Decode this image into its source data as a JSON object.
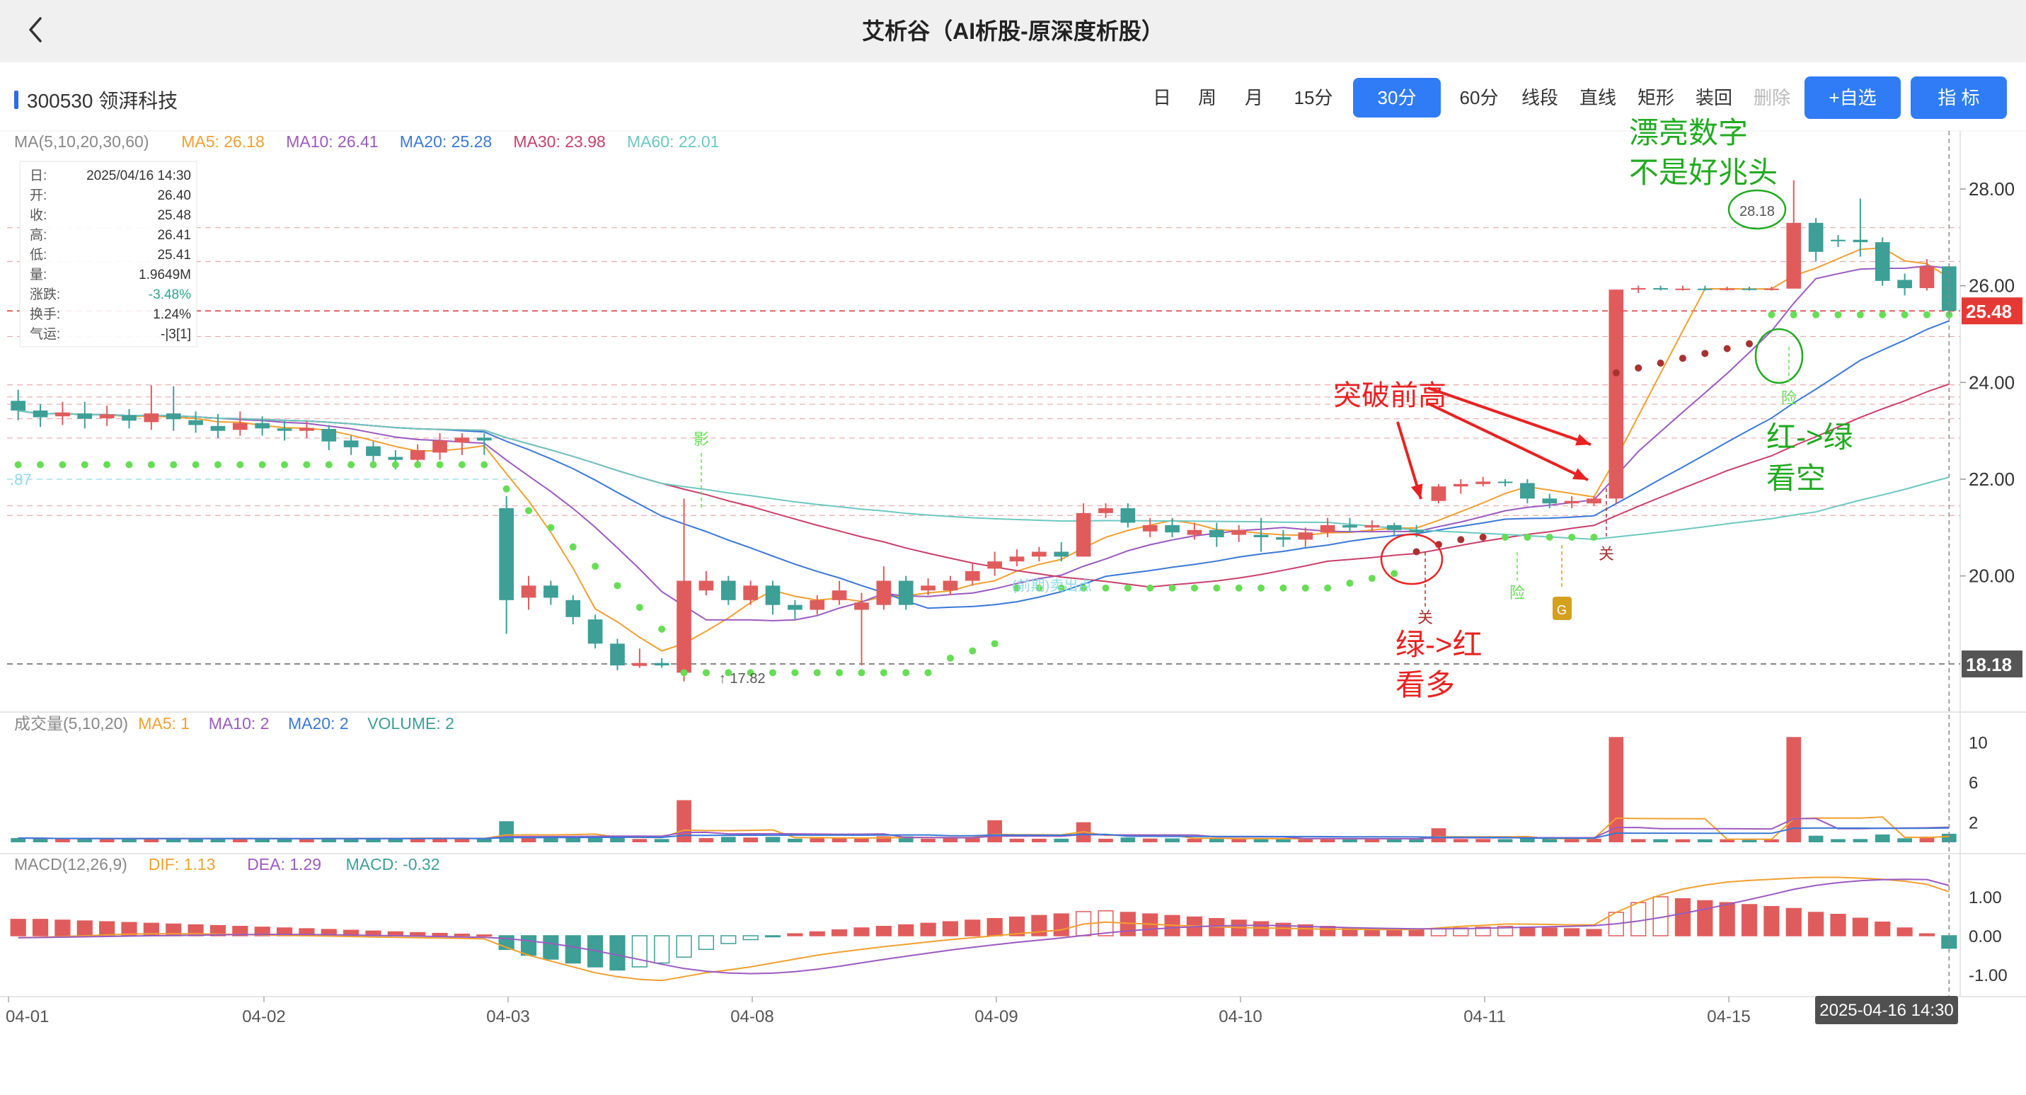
{
  "app": {
    "title": "艾析谷（AI析股-原深度析股）",
    "back_icon": "chevron-left-icon"
  },
  "stock": {
    "code_name": "300530 领湃科技"
  },
  "periods": [
    "日",
    "周",
    "月",
    "15分",
    "30分",
    "60分",
    "线段",
    "直线",
    "矩形",
    "装回",
    "删除"
  ],
  "active_period": "30分",
  "disabled_period": "删除",
  "buttons": {
    "watchlist": "+自选",
    "indicator": "指  标"
  },
  "colors": {
    "up": "#e05c5c",
    "down": "#3d9f96",
    "ma5": "#f0a030",
    "ma10": "#9a5bbf",
    "ma20": "#3a78d6",
    "ma30": "#c8406a",
    "ma60": "#6cc8c0",
    "accent": "#2f7cf6",
    "sar": "#66dd55",
    "annot_red": "#e82222",
    "annot_green": "#22aa22"
  },
  "ma_legend": [
    {
      "label": "MA(5,10,20,30,60)",
      "color": "#888888"
    },
    {
      "label": "MA5: 26.18",
      "color": "#f0a030"
    },
    {
      "label": "MA10: 26.41",
      "color": "#9a5bbf"
    },
    {
      "label": "MA20: 25.28",
      "color": "#3a78d6"
    },
    {
      "label": "MA30: 23.98",
      "color": "#c8406a"
    },
    {
      "label": "MA60: 22.01",
      "color": "#6cc8c0"
    }
  ],
  "info_box": [
    {
      "k": "日:",
      "v": "2025/04/16 14:30"
    },
    {
      "k": "开:",
      "v": "26.40"
    },
    {
      "k": "收:",
      "v": "25.48"
    },
    {
      "k": "高:",
      "v": "26.41"
    },
    {
      "k": "低:",
      "v": "25.41"
    },
    {
      "k": "量:",
      "v": "1.9649M"
    },
    {
      "k": "涨跌:",
      "v": "-3.48%"
    },
    {
      "k": "换手:",
      "v": "1.24%"
    },
    {
      "k": "气运:",
      "v": "-|3[1]"
    }
  ],
  "vol_legend": [
    {
      "label": "成交量(5,10,20)",
      "color": "#888888"
    },
    {
      "label": "MA5: 1",
      "color": "#f0a030"
    },
    {
      "label": "MA10: 2",
      "color": "#9a5bbf"
    },
    {
      "label": "MA20: 2",
      "color": "#3a78d6"
    },
    {
      "label": "VOLUME: 2",
      "color": "#3d9f96"
    }
  ],
  "macd_legend": [
    {
      "label": "MACD(12,26,9)",
      "color": "#888888"
    },
    {
      "label": "DIF: 1.13",
      "color": "#f0a030"
    },
    {
      "label": "DEA: 1.29",
      "color": "#9a5bbf"
    },
    {
      "label": "MACD: -0.32",
      "color": "#3d9f96"
    }
  ],
  "chart_data": {
    "type": "candlestick",
    "period": "30分",
    "x_labels": [
      "04-01",
      "04-02",
      "04-03",
      "04-08",
      "04-09",
      "04-10",
      "04-11",
      "04-15"
    ],
    "cursor_time": "2025-04-16 14:30",
    "price_axis": {
      "ticks": [
        "28.00",
        "26.00",
        "24.00",
        "22.00",
        "20.00"
      ],
      "range": [
        17.2,
        29.2
      ]
    },
    "current_price": "25.48",
    "low_line": "18.18",
    "high_mark": "28.18",
    "low_mark": "17.82",
    "left_level_label": ".87",
    "candles": [
      [
        23.62,
        23.42,
        23.85,
        23.22
      ],
      [
        23.42,
        23.28,
        23.55,
        23.08
      ],
      [
        23.3,
        23.38,
        23.6,
        23.12
      ],
      [
        23.36,
        23.25,
        23.6,
        23.05
      ],
      [
        23.26,
        23.34,
        23.52,
        23.1
      ],
      [
        23.32,
        23.21,
        23.45,
        23.05
      ],
      [
        23.18,
        23.36,
        23.94,
        23.02
      ],
      [
        23.36,
        23.24,
        23.92,
        23.0
      ],
      [
        23.22,
        23.12,
        23.4,
        22.96
      ],
      [
        23.1,
        23.0,
        23.35,
        22.85
      ],
      [
        23.02,
        23.16,
        23.4,
        22.9
      ],
      [
        23.16,
        23.05,
        23.3,
        22.9
      ],
      [
        23.05,
        23.0,
        23.2,
        22.8
      ],
      [
        23.0,
        23.06,
        23.2,
        22.85
      ],
      [
        23.04,
        22.78,
        23.12,
        22.6
      ],
      [
        22.8,
        22.66,
        22.9,
        22.5
      ],
      [
        22.68,
        22.48,
        22.78,
        22.3
      ],
      [
        22.46,
        22.4,
        22.6,
        22.2
      ],
      [
        22.4,
        22.6,
        22.72,
        22.3
      ],
      [
        22.55,
        22.8,
        22.95,
        22.4
      ],
      [
        22.76,
        22.86,
        22.95,
        22.5
      ],
      [
        22.86,
        22.8,
        22.95,
        22.5
      ],
      [
        21.4,
        19.5,
        21.65,
        18.8
      ],
      [
        19.55,
        19.8,
        20.0,
        19.3
      ],
      [
        19.8,
        19.55,
        19.9,
        19.4
      ],
      [
        19.5,
        19.15,
        19.6,
        19.0
      ],
      [
        19.1,
        18.6,
        19.2,
        18.5
      ],
      [
        18.6,
        18.15,
        18.7,
        18.05
      ],
      [
        18.14,
        18.2,
        18.5,
        18.1
      ],
      [
        18.2,
        18.15,
        18.3,
        18.1
      ],
      [
        18.0,
        19.9,
        21.6,
        17.82
      ],
      [
        19.7,
        19.9,
        20.1,
        19.6
      ],
      [
        19.9,
        19.5,
        20.0,
        19.4
      ],
      [
        19.5,
        19.8,
        19.9,
        19.4
      ],
      [
        19.8,
        19.4,
        19.9,
        19.2
      ],
      [
        19.4,
        19.3,
        19.5,
        19.1
      ],
      [
        19.3,
        19.5,
        19.6,
        19.2
      ],
      [
        19.5,
        19.7,
        19.9,
        19.4
      ],
      [
        19.3,
        19.45,
        19.65,
        18.15
      ],
      [
        19.4,
        19.9,
        20.2,
        19.3
      ],
      [
        19.9,
        19.4,
        20.0,
        19.3
      ],
      [
        19.7,
        19.8,
        19.95,
        19.6
      ],
      [
        19.7,
        19.9,
        20.0,
        19.6
      ],
      [
        19.9,
        20.1,
        20.25,
        19.8
      ],
      [
        20.15,
        20.3,
        20.5,
        20.0
      ],
      [
        20.3,
        20.4,
        20.55,
        20.2
      ],
      [
        20.4,
        20.5,
        20.6,
        20.3
      ],
      [
        20.5,
        20.4,
        20.7,
        20.3
      ],
      [
        20.4,
        21.3,
        21.5,
        20.4
      ],
      [
        21.3,
        21.4,
        21.5,
        21.2
      ],
      [
        21.4,
        21.1,
        21.5,
        21.0
      ],
      [
        20.92,
        21.05,
        21.2,
        20.8
      ],
      [
        21.05,
        20.9,
        21.2,
        20.8
      ],
      [
        20.85,
        20.95,
        21.1,
        20.75
      ],
      [
        20.95,
        20.8,
        21.1,
        20.6
      ],
      [
        20.85,
        20.95,
        21.05,
        20.7
      ],
      [
        20.85,
        20.8,
        21.2,
        20.5
      ],
      [
        20.8,
        20.75,
        20.95,
        20.6
      ],
      [
        20.75,
        20.9,
        21.0,
        20.6
      ],
      [
        20.9,
        21.05,
        21.2,
        20.8
      ],
      [
        21.05,
        21.0,
        21.2,
        20.9
      ],
      [
        21.0,
        21.05,
        21.15,
        20.9
      ],
      [
        21.05,
        20.95,
        21.1,
        20.85
      ],
      [
        20.95,
        20.9,
        21.05,
        20.8
      ],
      [
        21.55,
        21.85,
        21.9,
        21.5
      ],
      [
        21.85,
        21.9,
        22.0,
        21.7
      ],
      [
        21.9,
        21.95,
        22.05,
        21.85
      ],
      [
        21.95,
        21.92,
        22.0,
        21.85
      ],
      [
        21.92,
        21.6,
        22.0,
        21.5
      ],
      [
        21.6,
        21.5,
        21.7,
        21.4
      ],
      [
        21.5,
        21.55,
        21.65,
        21.4
      ],
      [
        21.5,
        21.6,
        21.65,
        21.45
      ],
      [
        21.6,
        25.92,
        25.92,
        21.5
      ],
      [
        25.92,
        25.95,
        26.0,
        25.85
      ],
      [
        25.95,
        25.93,
        26.0,
        25.9
      ],
      [
        25.93,
        25.94,
        26.0,
        25.9
      ],
      [
        25.94,
        25.93,
        26.0,
        25.9
      ],
      [
        25.93,
        25.94,
        25.98,
        25.9
      ],
      [
        25.94,
        25.93,
        25.98,
        25.9
      ],
      [
        25.93,
        25.94,
        25.98,
        25.9
      ],
      [
        25.94,
        27.3,
        28.18,
        26.0
      ],
      [
        27.3,
        26.7,
        27.4,
        26.5
      ],
      [
        26.95,
        26.92,
        27.05,
        26.8
      ],
      [
        26.95,
        26.9,
        27.8,
        26.6
      ],
      [
        26.9,
        26.1,
        27.0,
        26.0
      ],
      [
        26.12,
        25.95,
        26.25,
        25.8
      ],
      [
        25.95,
        26.4,
        26.55,
        25.9
      ],
      [
        26.4,
        25.48,
        26.41,
        25.41
      ]
    ],
    "volume_axis_ticks": [
      "10",
      "6",
      "2"
    ],
    "macd_axis_ticks": [
      "1.00",
      "0.00",
      "-1.00"
    ]
  },
  "annotations": {
    "breakout": "突破前高",
    "green_to_red": "绿->红",
    "bullish": "看多",
    "red_to_green": "红->绿",
    "bearish": "看空",
    "nice_number": "漂亮数字",
    "bad_omen": "不是好兆头",
    "close_mark": "关",
    "danger_mark": "险",
    "shadow_mark": "影",
    "g_mark": "G",
    "faint_label": "(前期)卖出点"
  }
}
